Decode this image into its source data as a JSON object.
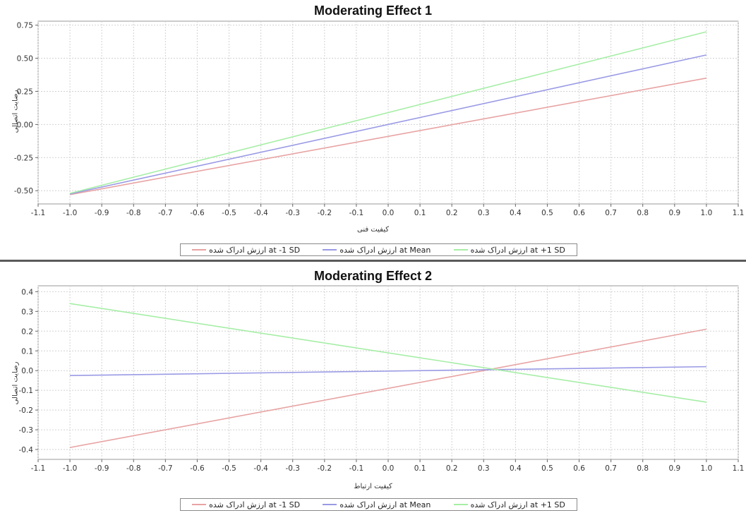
{
  "colors": {
    "minus_sd": "#e8a3a3",
    "mean": "#9a9ae6",
    "plus_sd": "#a6eea6"
  },
  "legend": [
    {
      "label": "ارزش ادراک شده at -1 SD",
      "color": "#e8a3a3"
    },
    {
      "label": "ارزش ادراک شده at Mean",
      "color": "#9a9ae6"
    },
    {
      "label": "ارزش ادراک شده at +1 SD",
      "color": "#a6eea6"
    }
  ],
  "chart_data": [
    {
      "type": "line",
      "title": "Moderating Effect 1",
      "xlabel": "کیفیت فنی",
      "ylabel": "رضایت اتصالی",
      "xlim": [
        -1.1,
        1.1
      ],
      "ylim": [
        -0.6,
        0.78
      ],
      "x_ticks": [
        "-1.1",
        "-1.0",
        "-0.9",
        "-0.8",
        "-0.7",
        "-0.6",
        "-0.5",
        "-0.4",
        "-0.3",
        "-0.2",
        "-0.1",
        "0.0",
        "0.1",
        "0.2",
        "0.3",
        "0.4",
        "0.5",
        "0.6",
        "0.7",
        "0.8",
        "0.9",
        "1.0",
        "1.1"
      ],
      "y_ticks": [
        "-0.50",
        "-0.25",
        "0.00",
        "0.25",
        "0.50",
        "0.75"
      ],
      "grid": true,
      "legend_position": "bottom",
      "series": [
        {
          "name": "ارزش ادراک شده at -1 SD",
          "color": "#e8a3a3",
          "x": [
            -1.0,
            1.0
          ],
          "y": [
            -0.53,
            0.35
          ]
        },
        {
          "name": "ارزش ادراک شده at Mean",
          "color": "#9a9ae6",
          "x": [
            -1.0,
            1.0
          ],
          "y": [
            -0.525,
            0.525
          ]
        },
        {
          "name": "ارزش ادراک شده at +1 SD",
          "color": "#a6eea6",
          "x": [
            -1.0,
            1.0
          ],
          "y": [
            -0.52,
            0.7
          ]
        }
      ]
    },
    {
      "type": "line",
      "title": "Moderating Effect 2",
      "xlabel": "کیفیت ارتباط",
      "ylabel": "رضایت اتصالی",
      "xlim": [
        -1.1,
        1.1
      ],
      "ylim": [
        -0.45,
        0.43
      ],
      "x_ticks": [
        "-1.1",
        "-1.0",
        "-0.9",
        "-0.8",
        "-0.7",
        "-0.6",
        "-0.5",
        "-0.4",
        "-0.3",
        "-0.2",
        "-0.1",
        "0.0",
        "0.1",
        "0.2",
        "0.3",
        "0.4",
        "0.5",
        "0.6",
        "0.7",
        "0.8",
        "0.9",
        "1.0",
        "1.1"
      ],
      "y_ticks": [
        "-0.4",
        "-0.3",
        "-0.2",
        "-0.1",
        "0.0",
        "0.1",
        "0.2",
        "0.3",
        "0.4"
      ],
      "grid": true,
      "legend_position": "bottom",
      "series": [
        {
          "name": "ارزش ادراک شده at -1 SD",
          "color": "#e8a3a3",
          "x": [
            -1.0,
            1.0
          ],
          "y": [
            -0.39,
            0.21
          ]
        },
        {
          "name": "ارزش ادراک شده at Mean",
          "color": "#9a9ae6",
          "x": [
            -1.0,
            1.0
          ],
          "y": [
            -0.025,
            0.02
          ]
        },
        {
          "name": "ارزش ادراک شده at +1 SD",
          "color": "#a6eea6",
          "x": [
            -1.0,
            1.0
          ],
          "y": [
            0.34,
            -0.16
          ]
        }
      ]
    }
  ]
}
